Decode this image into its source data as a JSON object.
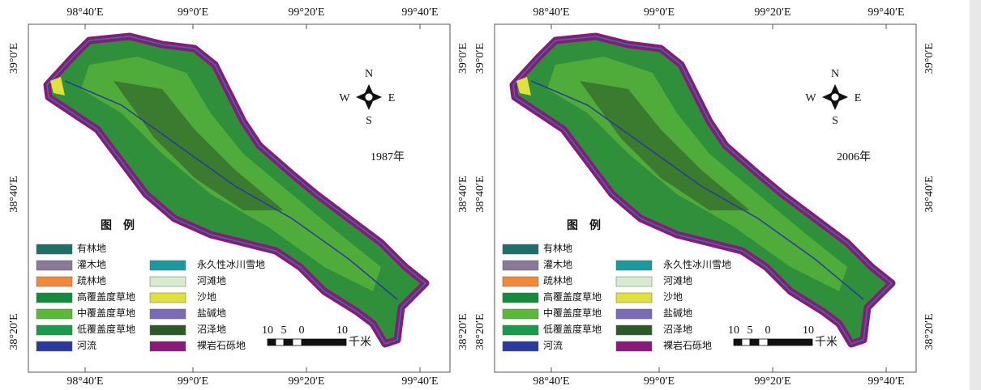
{
  "longitude_labels": [
    "98°40′E",
    "99°0′E",
    "99°20′E",
    "99°40′E"
  ],
  "latitude_labels": [
    "39°0′E",
    "38°40′E",
    "38°20′E"
  ],
  "compass": {
    "north": "N",
    "south": "S",
    "east": "E",
    "west": "W"
  },
  "panels": [
    {
      "year": "1987年"
    },
    {
      "year": "2006年"
    }
  ],
  "legend": {
    "title": "图　例",
    "items": [
      {
        "label": "有林地",
        "color": "#1f6e6a"
      },
      {
        "label": "灌木地",
        "color": "#8a7a9a"
      },
      {
        "label": "疏林地",
        "color": "#f08a3a"
      },
      {
        "label": "高覆盖度草地",
        "color": "#138a3c"
      },
      {
        "label": "中覆盖度草地",
        "color": "#5cb83a"
      },
      {
        "label": "低覆盖度草地",
        "color": "#1a9a4a"
      },
      {
        "label": "河流",
        "color": "#2a3a9a"
      },
      {
        "label": "永久性冰川雪地",
        "color": "#1a9aa0"
      },
      {
        "label": "河滩地",
        "color": "#d8ead0"
      },
      {
        "label": "沙地",
        "color": "#e0e040"
      },
      {
        "label": "盐碱地",
        "color": "#7a6ab8"
      },
      {
        "label": "沼泽地",
        "color": "#2e5a2a"
      },
      {
        "label": "裸岩石砾地",
        "color": "#8a1a7a"
      }
    ]
  },
  "scale_bar": {
    "ticks": [
      "10",
      "5",
      "0",
      "10"
    ],
    "unit": "千米"
  }
}
